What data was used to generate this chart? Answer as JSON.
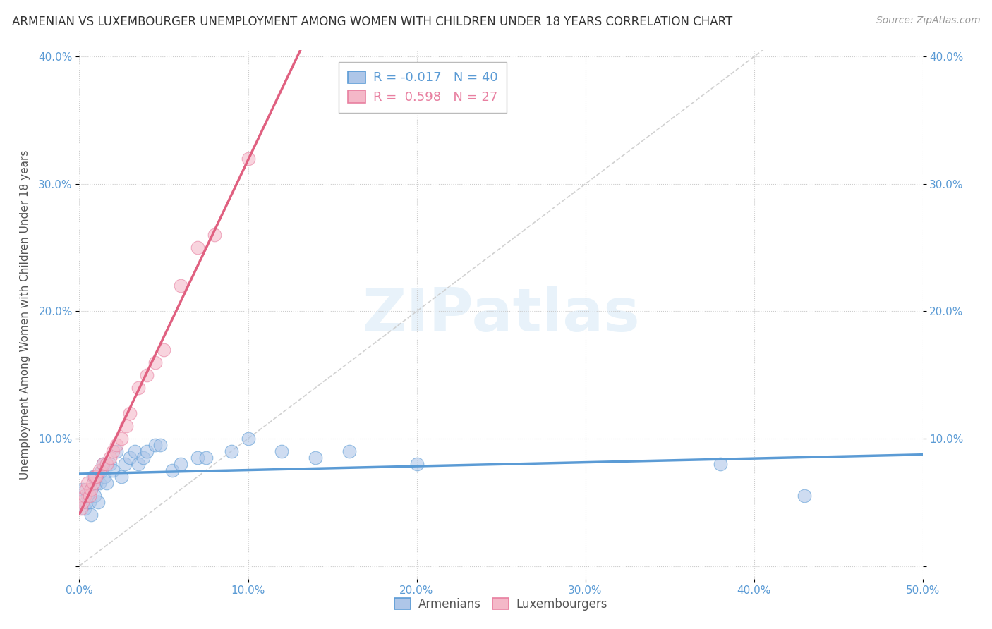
{
  "title": "ARMENIAN VS LUXEMBOURGER UNEMPLOYMENT AMONG WOMEN WITH CHILDREN UNDER 18 YEARS CORRELATION CHART",
  "source": "Source: ZipAtlas.com",
  "ylabel": "Unemployment Among Women with Children Under 18 years",
  "armenian_color": "#aec6e8",
  "luxembourger_color": "#f4b8c8",
  "armenian_edge_color": "#5b9bd5",
  "luxembourger_edge_color": "#e87fa0",
  "trend_line_color_armenian": "#5b9bd5",
  "trend_line_color_luxembourger": "#e06080",
  "diagonal_color": "#cccccc",
  "background_color": "#ffffff",
  "watermark": "ZIPatlas",
  "armenian_R": -0.017,
  "armenian_N": 40,
  "luxembourger_R": 0.598,
  "luxembourger_N": 27,
  "armenian_x": [
    0.002,
    0.003,
    0.004,
    0.005,
    0.006,
    0.007,
    0.007,
    0.008,
    0.009,
    0.01,
    0.011,
    0.012,
    0.013,
    0.014,
    0.015,
    0.016,
    0.018,
    0.02,
    0.022,
    0.025,
    0.027,
    0.03,
    0.033,
    0.035,
    0.038,
    0.04,
    0.045,
    0.048,
    0.055,
    0.06,
    0.07,
    0.075,
    0.09,
    0.1,
    0.12,
    0.14,
    0.16,
    0.2,
    0.38,
    0.43
  ],
  "armenian_y": [
    0.06,
    0.045,
    0.05,
    0.055,
    0.05,
    0.06,
    0.04,
    0.07,
    0.055,
    0.065,
    0.05,
    0.065,
    0.075,
    0.08,
    0.07,
    0.065,
    0.08,
    0.075,
    0.09,
    0.07,
    0.08,
    0.085,
    0.09,
    0.08,
    0.085,
    0.09,
    0.095,
    0.095,
    0.075,
    0.08,
    0.085,
    0.085,
    0.09,
    0.1,
    0.09,
    0.085,
    0.09,
    0.08,
    0.08,
    0.055
  ],
  "luxembourger_x": [
    0.001,
    0.002,
    0.003,
    0.004,
    0.005,
    0.006,
    0.007,
    0.008,
    0.009,
    0.01,
    0.012,
    0.014,
    0.016,
    0.018,
    0.02,
    0.022,
    0.025,
    0.028,
    0.03,
    0.035,
    0.04,
    0.045,
    0.05,
    0.06,
    0.07,
    0.08,
    0.1
  ],
  "luxembourger_y": [
    0.045,
    0.05,
    0.055,
    0.06,
    0.065,
    0.055,
    0.06,
    0.065,
    0.07,
    0.07,
    0.075,
    0.08,
    0.08,
    0.085,
    0.09,
    0.095,
    0.1,
    0.11,
    0.12,
    0.14,
    0.15,
    0.16,
    0.17,
    0.22,
    0.25,
    0.26,
    0.32
  ],
  "xlim": [
    0,
    0.5
  ],
  "ylim": [
    -0.01,
    0.405
  ],
  "xticks": [
    0,
    0.1,
    0.2,
    0.3,
    0.4,
    0.5
  ],
  "yticks": [
    0,
    0.1,
    0.2,
    0.3,
    0.4
  ],
  "xtick_labels": [
    "0.0%",
    "10.0%",
    "20.0%",
    "30.0%",
    "40.0%",
    "50.0%"
  ],
  "ytick_labels": [
    "",
    "10.0%",
    "20.0%",
    "30.0%",
    "40.0%"
  ],
  "tick_color": "#5b9bd5",
  "title_fontsize": 12,
  "source_fontsize": 10,
  "axis_label_fontsize": 11,
  "tick_fontsize": 11,
  "legend_fontsize": 13,
  "scatter_size": 180,
  "scatter_alpha": 0.6,
  "trend_linewidth": 2.5
}
